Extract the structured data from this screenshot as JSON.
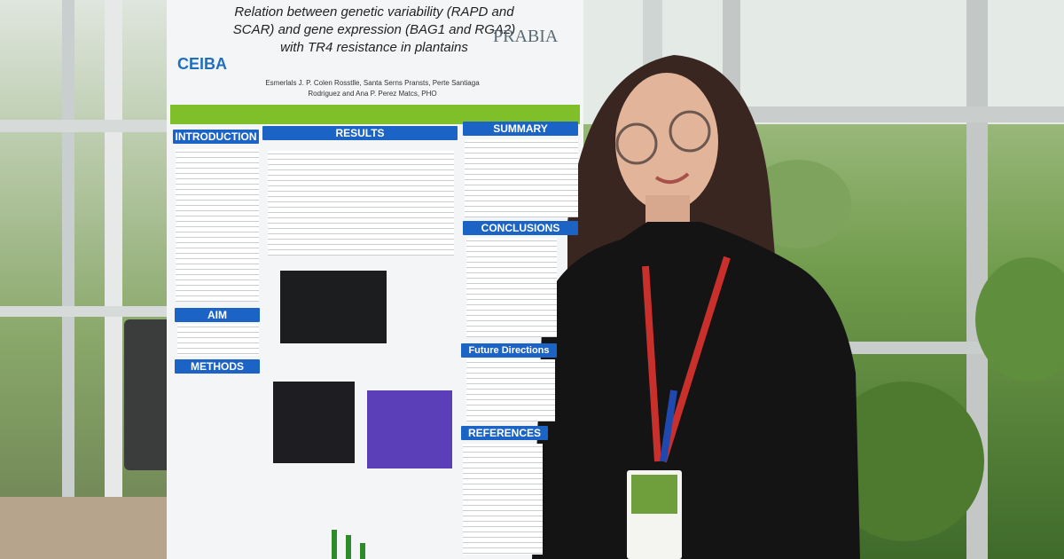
{
  "poster": {
    "title": "Relation between genetic variability (RAPD and SCAR) and gene expression (BAG1 and RGA2) with TR4 resistance in plantains",
    "authors": "Esmerlals J. P. Colen Rosstlle, Santa Serns Pransts, Perte Santiaga Rodriguez and Ana P. Perez Matcs, PHO",
    "logos": {
      "left": "CEIBA",
      "right": "PRABIA"
    },
    "sections": {
      "introduction": "INTRODUCTION",
      "results": "RESULTS",
      "summary": "SUMMARY",
      "conclusions": "CONCLUSIONS",
      "aim": "AIM",
      "methods": "METHODS",
      "future": "Future Directions",
      "references": "REFERENCES"
    }
  }
}
